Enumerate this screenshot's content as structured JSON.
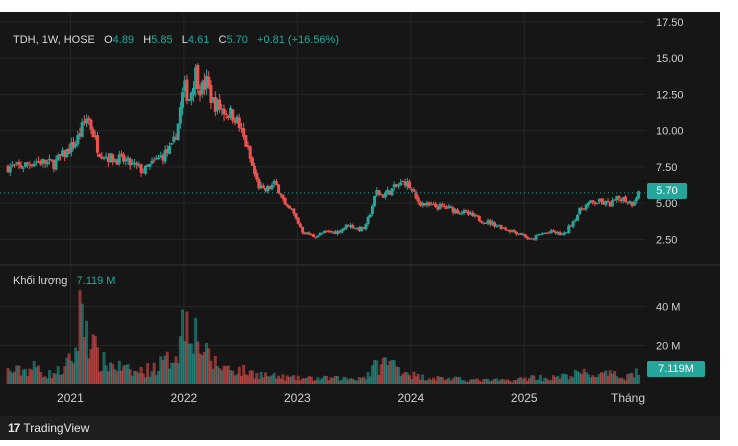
{
  "legend": {
    "symbol": "TDH, 1W, HOSE",
    "o_label": "O",
    "o_value": "4.89",
    "h_label": "H",
    "h_value": "5.85",
    "l_label": "L",
    "l_value": "4.61",
    "c_label": "C",
    "c_value": "5.70",
    "change": "+0.81 (+16.56%)"
  },
  "volume_legend": {
    "label": "Khối lượng",
    "value": "7.119 M"
  },
  "price_badge": "5.70",
  "volume_badge": "7.119M",
  "brand": "TradingView",
  "colors": {
    "up": "#26a69a",
    "down": "#ef5350",
    "background": "#161616"
  },
  "chart_data": {
    "type": "candlestick",
    "timeframe": "1W",
    "x_ticks": [
      "2021",
      "2022",
      "2023",
      "2024",
      "2025",
      "Tháng"
    ],
    "price_axis": {
      "ticks": [
        "17.50",
        "15.00",
        "12.50",
        "10.00",
        "7.50",
        "5.00",
        "2.50"
      ],
      "range": [
        0.8,
        17.9
      ]
    },
    "volume_axis": {
      "ticks": [
        "40 M",
        "20 M"
      ],
      "range": [
        0,
        60
      ]
    },
    "price_points": [
      [
        2020.55,
        7.5
      ],
      [
        2020.7,
        7.9
      ],
      [
        2020.85,
        7.7
      ],
      [
        2020.95,
        8.4
      ],
      [
        2021.05,
        9.2
      ],
      [
        2021.15,
        11.0
      ],
      [
        2021.2,
        9.8
      ],
      [
        2021.25,
        8.6
      ],
      [
        2021.35,
        8.1
      ],
      [
        2021.45,
        8.0
      ],
      [
        2021.55,
        7.6
      ],
      [
        2021.65,
        7.2
      ],
      [
        2021.75,
        7.9
      ],
      [
        2021.8,
        8.2
      ],
      [
        2021.9,
        8.8
      ],
      [
        2021.95,
        10.5
      ],
      [
        2022.0,
        13.0
      ],
      [
        2022.05,
        12.2
      ],
      [
        2022.1,
        14.1
      ],
      [
        2022.15,
        12.8
      ],
      [
        2022.2,
        13.3
      ],
      [
        2022.25,
        12.0
      ],
      [
        2022.35,
        11.4
      ],
      [
        2022.45,
        11.0
      ],
      [
        2022.55,
        9.0
      ],
      [
        2022.6,
        7.6
      ],
      [
        2022.65,
        6.3
      ],
      [
        2022.7,
        5.8
      ],
      [
        2022.8,
        6.3
      ],
      [
        2022.85,
        5.8
      ],
      [
        2022.9,
        4.6
      ],
      [
        2022.95,
        4.5
      ],
      [
        2023.05,
        3.0
      ],
      [
        2023.15,
        2.7
      ],
      [
        2023.25,
        3.0
      ],
      [
        2023.35,
        3.0
      ],
      [
        2023.45,
        3.5
      ],
      [
        2023.55,
        3.2
      ],
      [
        2023.6,
        3.3
      ],
      [
        2023.7,
        5.8
      ],
      [
        2023.75,
        5.5
      ],
      [
        2023.85,
        6.0
      ],
      [
        2023.95,
        6.5
      ],
      [
        2024.0,
        6.0
      ],
      [
        2024.05,
        5.2
      ],
      [
        2024.15,
        4.8
      ],
      [
        2024.3,
        4.7
      ],
      [
        2024.45,
        4.4
      ],
      [
        2024.6,
        3.9
      ],
      [
        2024.75,
        3.5
      ],
      [
        2024.85,
        3.2
      ],
      [
        2025.0,
        2.8
      ],
      [
        2025.05,
        2.4
      ],
      [
        2025.15,
        2.9
      ],
      [
        2025.25,
        3.0
      ],
      [
        2025.35,
        2.8
      ],
      [
        2025.4,
        3.4
      ],
      [
        2025.5,
        4.6
      ],
      [
        2025.55,
        4.9
      ],
      [
        2025.65,
        5.1
      ],
      [
        2025.75,
        4.9
      ],
      [
        2025.85,
        5.4
      ],
      [
        2025.95,
        5.0
      ],
      [
        2026.0,
        5.7
      ]
    ],
    "volume_points": [
      [
        2020.55,
        7
      ],
      [
        2020.7,
        9
      ],
      [
        2020.8,
        5
      ],
      [
        2020.95,
        8
      ],
      [
        2021.05,
        18
      ],
      [
        2021.1,
        45
      ],
      [
        2021.15,
        30
      ],
      [
        2021.25,
        12
      ],
      [
        2021.4,
        10
      ],
      [
        2021.55,
        6
      ],
      [
        2021.7,
        8
      ],
      [
        2021.85,
        12
      ],
      [
        2021.95,
        20
      ],
      [
        2022.0,
        35
      ],
      [
        2022.05,
        40
      ],
      [
        2022.1,
        28
      ],
      [
        2022.2,
        15
      ],
      [
        2022.3,
        10
      ],
      [
        2022.45,
        8
      ],
      [
        2022.6,
        6
      ],
      [
        2022.8,
        4
      ],
      [
        2023.0,
        3
      ],
      [
        2023.2,
        3
      ],
      [
        2023.5,
        3
      ],
      [
        2023.6,
        4
      ],
      [
        2023.7,
        10
      ],
      [
        2023.8,
        12
      ],
      [
        2023.9,
        9
      ],
      [
        2024.05,
        4
      ],
      [
        2024.3,
        3
      ],
      [
        2024.6,
        2
      ],
      [
        2024.9,
        2
      ],
      [
        2025.1,
        4
      ],
      [
        2025.2,
        3
      ],
      [
        2025.35,
        4
      ],
      [
        2025.5,
        6
      ],
      [
        2025.6,
        5
      ],
      [
        2025.75,
        5
      ],
      [
        2025.9,
        4
      ],
      [
        2026.0,
        7.1
      ]
    ]
  }
}
